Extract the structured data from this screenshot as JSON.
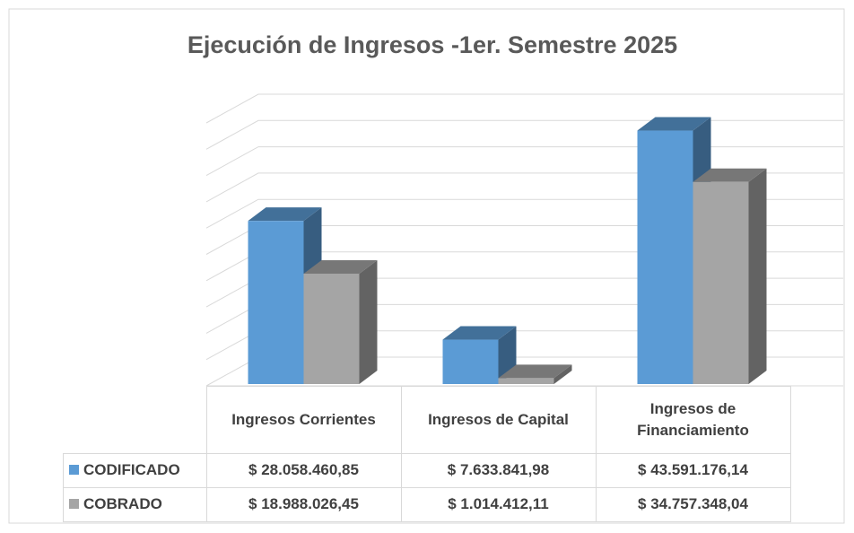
{
  "chart_data": {
    "type": "bar3d",
    "title": "Ejecución de Ingresos -1er. Semestre 2025",
    "categories": [
      "Ingresos Corrientes",
      "Ingresos de Capital",
      "Ingresos de Financiamiento"
    ],
    "series": [
      {
        "name": "CODIFICADO",
        "color": "#5b9bd5",
        "values": [
          28058460.85,
          7633841.98,
          43591176.14
        ],
        "value_labels": [
          "$ 28.058.460,85",
          "$ 7.633.841,98",
          "$ 43.591.176,14"
        ]
      },
      {
        "name": "COBRADO",
        "color": "#a5a5a5",
        "values": [
          18988026.45,
          1014412.11,
          34757348.04
        ],
        "value_labels": [
          "$ 18.988.026,45",
          "$ 1.014.412,11",
          "$ 34.757.348,04"
        ]
      }
    ],
    "ylim": [
      0,
      50000000
    ],
    "yticks": [
      0,
      5000000,
      10000000,
      15000000,
      20000000,
      25000000,
      30000000,
      35000000,
      40000000,
      45000000,
      50000000
    ],
    "grid": true
  }
}
